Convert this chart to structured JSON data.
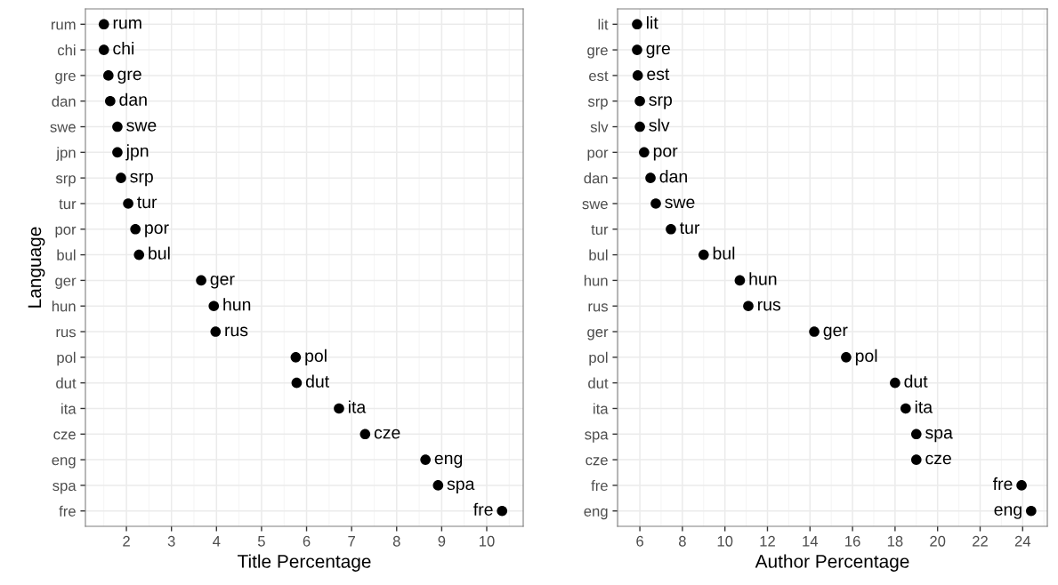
{
  "chart_data": [
    {
      "type": "scatter",
      "orientation": "horizontal",
      "xlabel": "Title Percentage",
      "ylabel": "Language",
      "categories": [
        "rum",
        "chi",
        "gre",
        "dan",
        "swe",
        "jpn",
        "srp",
        "tur",
        "por",
        "bul",
        "ger",
        "hun",
        "rus",
        "pol",
        "dut",
        "ita",
        "cze",
        "eng",
        "spa",
        "fre"
      ],
      "series": [
        {
          "color": "#000000",
          "values": [
            1.5,
            1.5,
            1.6,
            1.64,
            1.8,
            1.8,
            1.88,
            2.04,
            2.2,
            2.28,
            3.66,
            3.94,
            3.98,
            5.76,
            5.78,
            6.72,
            7.3,
            8.64,
            8.92,
            10.34
          ],
          "value_labels": [
            "rum",
            "chi",
            "gre",
            "dan",
            "swe",
            "jpn",
            "srp",
            "tur",
            "por",
            "bul",
            "ger",
            "hun",
            "rus",
            "pol",
            "dut",
            "ita",
            "cze",
            "eng",
            "spa",
            "fre"
          ]
        }
      ],
      "xlim": [
        1.09,
        10.81
      ],
      "xticks": [
        2,
        3,
        4,
        5,
        6,
        7,
        8,
        9,
        10
      ],
      "grid": true,
      "marker": "circle",
      "legend": false
    },
    {
      "type": "scatter",
      "orientation": "horizontal",
      "xlabel": "Author Percentage",
      "categories": [
        "lit",
        "gre",
        "est",
        "srp",
        "slv",
        "por",
        "dan",
        "swe",
        "tur",
        "bul",
        "hun",
        "rus",
        "ger",
        "pol",
        "dut",
        "ita",
        "spa",
        "cze",
        "fre",
        "eng"
      ],
      "series": [
        {
          "color": "#000000",
          "values": [
            5.87,
            5.87,
            5.9,
            6.0,
            6.0,
            6.2,
            6.5,
            6.75,
            7.46,
            9.0,
            10.7,
            11.1,
            14.2,
            15.7,
            18.0,
            18.5,
            19.0,
            19.0,
            23.95,
            24.4
          ],
          "value_labels": [
            "lit",
            "gre",
            "est",
            "srp",
            "slv",
            "por",
            "dan",
            "swe",
            "tur",
            "bul",
            "hun",
            "rus",
            "ger",
            "pol",
            "dut",
            "ita",
            "spa",
            "cze",
            "fre",
            "eng"
          ]
        }
      ],
      "xlim": [
        4.95,
        25.16
      ],
      "xticks": [
        6,
        8,
        10,
        12,
        14,
        16,
        18,
        20,
        22,
        24
      ],
      "grid": true,
      "marker": "circle",
      "legend": false
    }
  ]
}
